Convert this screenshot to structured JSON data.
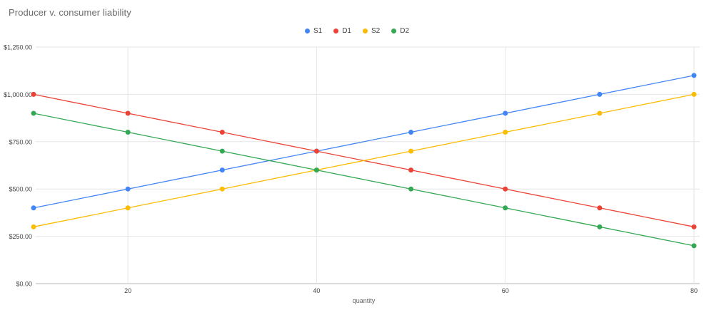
{
  "page": {
    "background": "#ffffff"
  },
  "chart_data": {
    "type": "line",
    "title": "Producer v. consumer liability",
    "xlabel": "quantity",
    "ylabel": "",
    "legend_position": "top-center",
    "grid": true,
    "x": [
      10,
      20,
      30,
      40,
      50,
      60,
      70,
      80
    ],
    "series": [
      {
        "name": "S1",
        "color": "#4285F4",
        "values": [
          400,
          500,
          600,
          700,
          800,
          900,
          1000,
          1100
        ]
      },
      {
        "name": "D1",
        "color": "#EA4335",
        "values": [
          1000,
          900,
          800,
          700,
          600,
          500,
          400,
          300
        ]
      },
      {
        "name": "S2",
        "color": "#FBBC04",
        "values": [
          300,
          400,
          500,
          600,
          700,
          800,
          900,
          1000
        ]
      },
      {
        "name": "D2",
        "color": "#34A853",
        "values": [
          900,
          800,
          700,
          600,
          500,
          400,
          300,
          200
        ]
      }
    ],
    "xlim": [
      10,
      80
    ],
    "ylim": [
      0,
      1250
    ],
    "x_tick_values": [
      20,
      40,
      60,
      80
    ],
    "x_tick_labels": [
      "20",
      "40",
      "60",
      "80"
    ],
    "y_tick_values": [
      0,
      250,
      500,
      750,
      1000,
      1250
    ],
    "y_tick_labels": [
      "$0.00",
      "$250.00",
      "$500.00",
      "$750.00",
      "$1,000.00",
      "$1,250.00"
    ]
  },
  "colors": {
    "gridline": "#e6e6e6",
    "axis_baseline": "#dadada",
    "title_text": "#6b6b6b",
    "tick_text": "#444444",
    "axis_title_text": "#616161"
  }
}
